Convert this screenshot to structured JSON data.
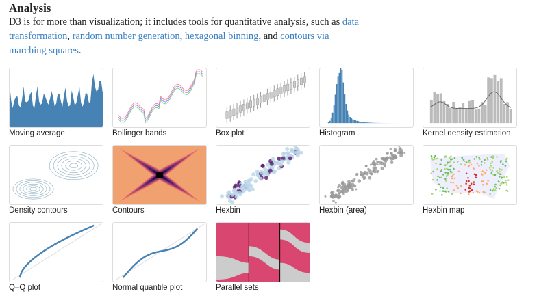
{
  "section": {
    "title": "Analysis",
    "intro_before": "D3 is for more than visualization; it includes tools for quantitative analysis, such as ",
    "links": [
      "data transformation",
      "random number generation",
      "hexagonal binning",
      "contours via marching squares"
    ],
    "sep1": ", ",
    "sep2": ", ",
    "sep3": ", and ",
    "end": "."
  },
  "examples": [
    {
      "label": "Moving average",
      "thumb": "area-chart"
    },
    {
      "label": "Bollinger bands",
      "thumb": "line-bands"
    },
    {
      "label": "Box plot",
      "thumb": "box-plot"
    },
    {
      "label": "Histogram",
      "thumb": "histogram"
    },
    {
      "label": "Kernel density estimation",
      "thumb": "kde"
    },
    {
      "label": "Density contours",
      "thumb": "density-contours"
    },
    {
      "label": "Contours",
      "thumb": "contours"
    },
    {
      "label": "Hexbin",
      "thumb": "hexbin"
    },
    {
      "label": "Hexbin (area)",
      "thumb": "hexbin-area"
    },
    {
      "label": "Hexbin map",
      "thumb": "hexbin-map"
    },
    {
      "label": "Q–Q plot",
      "thumb": "qq-plot"
    },
    {
      "label": "Normal quantile plot",
      "thumb": "quantile-plot"
    },
    {
      "label": "Parallel sets",
      "thumb": "parallel-sets"
    }
  ],
  "colors": {
    "link": "#3b82c4",
    "steelblue": "#4682b4",
    "pink": "#d9466f"
  }
}
